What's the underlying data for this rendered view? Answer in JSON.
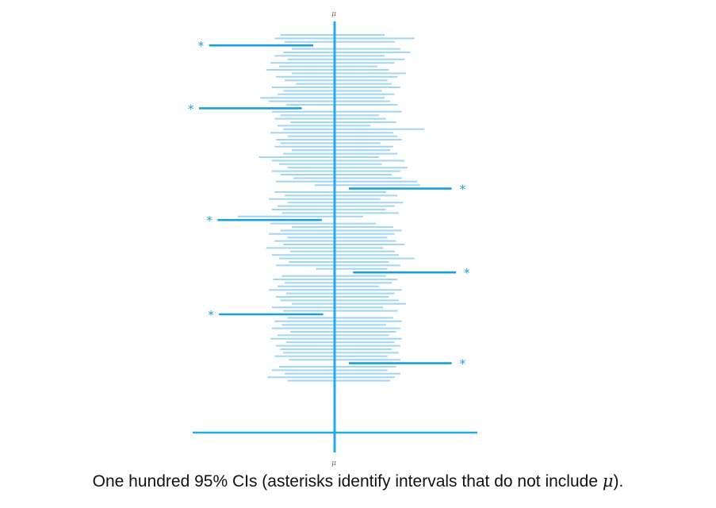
{
  "caption": {
    "text_before": "One hundred 95% CIs (asterisks identify intervals that do not include ",
    "mu": "μ",
    "text_after": ")."
  },
  "chart_data": {
    "type": "interval",
    "mu_label": "μ",
    "reference_value": 0,
    "xlim": [
      -1,
      1
    ],
    "n_intervals": 100,
    "colors": {
      "line": "#29a9e1",
      "normal_interval": "#9fd6f3",
      "missed_interval": "#1b9fdc"
    },
    "missed_marker": "*",
    "intervals": [
      {
        "lo": -0.38,
        "hi": 0.35,
        "missed": false
      },
      {
        "lo": -0.42,
        "hi": 0.56,
        "missed": false
      },
      {
        "lo": -0.35,
        "hi": 0.42,
        "missed": false
      },
      {
        "lo": -0.88,
        "hi": -0.15,
        "missed": true
      },
      {
        "lo": -0.3,
        "hi": 0.46,
        "missed": false
      },
      {
        "lo": -0.36,
        "hi": 0.53,
        "missed": false
      },
      {
        "lo": -0.42,
        "hi": 0.35,
        "missed": false
      },
      {
        "lo": -0.33,
        "hi": 0.49,
        "missed": false
      },
      {
        "lo": -0.45,
        "hi": 0.42,
        "missed": false
      },
      {
        "lo": -0.39,
        "hi": 0.3,
        "missed": false
      },
      {
        "lo": -0.48,
        "hi": 0.38,
        "missed": false
      },
      {
        "lo": -0.3,
        "hi": 0.5,
        "missed": false
      },
      {
        "lo": -0.41,
        "hi": 0.44,
        "missed": false
      },
      {
        "lo": -0.35,
        "hi": 0.37,
        "missed": false
      },
      {
        "lo": -0.27,
        "hi": 0.4,
        "missed": false
      },
      {
        "lo": -0.44,
        "hi": 0.46,
        "missed": false
      },
      {
        "lo": -0.36,
        "hi": 0.33,
        "missed": false
      },
      {
        "lo": -0.4,
        "hi": 0.42,
        "missed": false
      },
      {
        "lo": -0.52,
        "hi": 0.35,
        "missed": false
      },
      {
        "lo": -0.46,
        "hi": 0.39,
        "missed": false
      },
      {
        "lo": -0.34,
        "hi": 0.44,
        "missed": false
      },
      {
        "lo": -0.95,
        "hi": -0.23,
        "missed": true
      },
      {
        "lo": -0.44,
        "hi": 0.47,
        "missed": false
      },
      {
        "lo": -0.38,
        "hi": 0.31,
        "missed": false
      },
      {
        "lo": -0.42,
        "hi": 0.36,
        "missed": false
      },
      {
        "lo": -0.31,
        "hi": 0.43,
        "missed": false
      },
      {
        "lo": -0.4,
        "hi": 0.25,
        "missed": false
      },
      {
        "lo": -0.36,
        "hi": 0.63,
        "missed": false
      },
      {
        "lo": -0.45,
        "hi": 0.41,
        "missed": false
      },
      {
        "lo": -0.33,
        "hi": 0.44,
        "missed": false
      },
      {
        "lo": -0.41,
        "hi": 0.47,
        "missed": false
      },
      {
        "lo": -0.38,
        "hi": 0.32,
        "missed": false
      },
      {
        "lo": -0.42,
        "hi": 0.41,
        "missed": false
      },
      {
        "lo": -0.3,
        "hi": 0.39,
        "missed": false
      },
      {
        "lo": -0.36,
        "hi": 0.44,
        "missed": false
      },
      {
        "lo": -0.53,
        "hi": 0.31,
        "missed": false
      },
      {
        "lo": -0.44,
        "hi": 0.49,
        "missed": false
      },
      {
        "lo": -0.39,
        "hi": 0.33,
        "missed": false
      },
      {
        "lo": -0.33,
        "hi": 0.51,
        "missed": false
      },
      {
        "lo": -0.44,
        "hi": 0.46,
        "missed": false
      },
      {
        "lo": -0.38,
        "hi": 0.4,
        "missed": false
      },
      {
        "lo": -0.29,
        "hi": 0.47,
        "missed": false
      },
      {
        "lo": -0.41,
        "hi": 0.58,
        "missed": false
      },
      {
        "lo": -0.14,
        "hi": 0.6,
        "missed": false
      },
      {
        "lo": 0.1,
        "hi": 0.82,
        "missed": true
      },
      {
        "lo": -0.42,
        "hi": 0.36,
        "missed": false
      },
      {
        "lo": -0.35,
        "hi": 0.44,
        "missed": false
      },
      {
        "lo": -0.46,
        "hi": 0.32,
        "missed": false
      },
      {
        "lo": -0.33,
        "hi": 0.48,
        "missed": false
      },
      {
        "lo": -0.4,
        "hi": 0.42,
        "missed": false
      },
      {
        "lo": -0.44,
        "hi": 0.36,
        "missed": false
      },
      {
        "lo": -0.37,
        "hi": 0.45,
        "missed": false
      },
      {
        "lo": -0.68,
        "hi": 0.2,
        "missed": false
      },
      {
        "lo": -0.82,
        "hi": -0.09,
        "missed": true
      },
      {
        "lo": -0.45,
        "hi": 0.29,
        "missed": false
      },
      {
        "lo": -0.3,
        "hi": 0.41,
        "missed": false
      },
      {
        "lo": -0.38,
        "hi": 0.47,
        "missed": false
      },
      {
        "lo": -0.46,
        "hi": 0.42,
        "missed": false
      },
      {
        "lo": -0.33,
        "hi": 0.37,
        "missed": false
      },
      {
        "lo": -0.42,
        "hi": 0.43,
        "missed": false
      },
      {
        "lo": -0.36,
        "hi": 0.49,
        "missed": false
      },
      {
        "lo": -0.48,
        "hi": 0.34,
        "missed": false
      },
      {
        "lo": -0.31,
        "hi": 0.42,
        "missed": false
      },
      {
        "lo": -0.44,
        "hi": 0.45,
        "missed": false
      },
      {
        "lo": -0.39,
        "hi": 0.56,
        "missed": false
      },
      {
        "lo": -0.32,
        "hi": 0.38,
        "missed": false
      },
      {
        "lo": -0.41,
        "hi": 0.46,
        "missed": false
      },
      {
        "lo": -0.13,
        "hi": 0.37,
        "missed": false
      },
      {
        "lo": 0.13,
        "hi": 0.85,
        "missed": true
      },
      {
        "lo": -0.37,
        "hi": 0.36,
        "missed": false
      },
      {
        "lo": -0.43,
        "hi": 0.44,
        "missed": false
      },
      {
        "lo": -0.35,
        "hi": 0.4,
        "missed": false
      },
      {
        "lo": -0.4,
        "hi": 0.31,
        "missed": false
      },
      {
        "lo": -0.46,
        "hi": 0.47,
        "missed": false
      },
      {
        "lo": -0.34,
        "hi": 0.42,
        "missed": false
      },
      {
        "lo": -0.41,
        "hi": 0.38,
        "missed": false
      },
      {
        "lo": -0.38,
        "hi": 0.45,
        "missed": false
      },
      {
        "lo": -0.3,
        "hi": 0.5,
        "missed": false
      },
      {
        "lo": -0.44,
        "hi": 0.34,
        "missed": false
      },
      {
        "lo": -0.36,
        "hi": 0.44,
        "missed": false
      },
      {
        "lo": -0.81,
        "hi": -0.08,
        "missed": true
      },
      {
        "lo": -0.33,
        "hi": 0.41,
        "missed": false
      },
      {
        "lo": -0.42,
        "hi": 0.47,
        "missed": false
      },
      {
        "lo": -0.37,
        "hi": 0.36,
        "missed": false
      },
      {
        "lo": -0.44,
        "hi": 0.46,
        "missed": false
      },
      {
        "lo": -0.31,
        "hi": 0.43,
        "missed": false
      },
      {
        "lo": -0.4,
        "hi": 0.38,
        "missed": false
      },
      {
        "lo": -0.45,
        "hi": 0.47,
        "missed": false
      },
      {
        "lo": -0.34,
        "hi": 0.42,
        "missed": false
      },
      {
        "lo": -0.41,
        "hi": 0.46,
        "missed": false
      },
      {
        "lo": -0.38,
        "hi": 0.4,
        "missed": false
      },
      {
        "lo": -0.36,
        "hi": 0.45,
        "missed": false
      },
      {
        "lo": -0.42,
        "hi": 0.37,
        "missed": false
      },
      {
        "lo": -0.32,
        "hi": 0.46,
        "missed": false
      },
      {
        "lo": 0.1,
        "hi": 0.82,
        "missed": true
      },
      {
        "lo": -0.39,
        "hi": 0.43,
        "missed": false
      },
      {
        "lo": -0.44,
        "hi": 0.37,
        "missed": false
      },
      {
        "lo": -0.35,
        "hi": 0.46,
        "missed": false
      },
      {
        "lo": -0.47,
        "hi": 0.42,
        "missed": false
      },
      {
        "lo": -0.33,
        "hi": 0.39,
        "missed": false
      }
    ]
  }
}
